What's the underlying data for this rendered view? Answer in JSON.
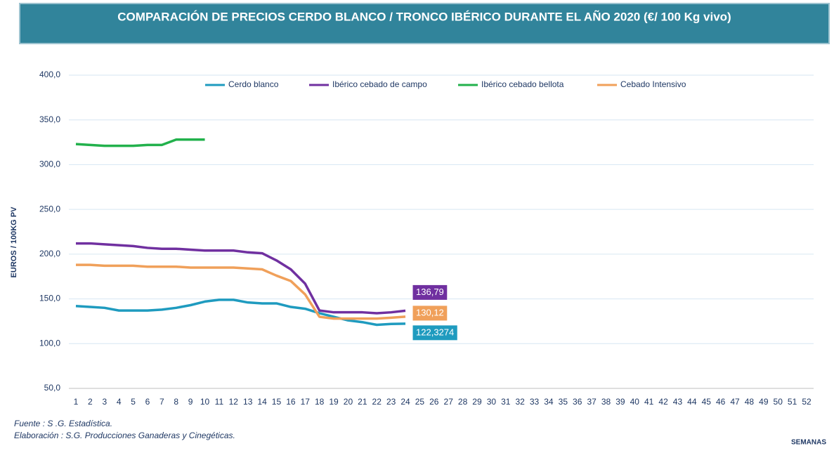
{
  "chart_data": {
    "type": "line",
    "title": "COMPARACIÓN DE PRECIOS CERDO BLANCO / TRONCO IBÉRICO DURANTE EL AÑO 2020 (€/ 100 Kg vivo)",
    "ylabel": "EUROS / 100KG PV",
    "xlabel": "SEMANAS",
    "source": [
      "Fuente :  S .G. Estadística.",
      "Elaboración : S.G. Producciones Ganaderas y Cinegéticas."
    ],
    "x": [
      1,
      2,
      3,
      4,
      5,
      6,
      7,
      8,
      9,
      10,
      11,
      12,
      13,
      14,
      15,
      16,
      17,
      18,
      19,
      20,
      21,
      22,
      23,
      24,
      25,
      26,
      27,
      28,
      29,
      30,
      31,
      32,
      33,
      34,
      35,
      36,
      37,
      38,
      39,
      40,
      41,
      42,
      43,
      44,
      45,
      46,
      47,
      48,
      49,
      50,
      51,
      52
    ],
    "xlim": [
      1,
      52
    ],
    "ylim": [
      50,
      400
    ],
    "yticks": [
      {
        "value": 50,
        "label": "50,0"
      },
      {
        "value": 100,
        "label": "100,0"
      },
      {
        "value": 150,
        "label": "150,0"
      },
      {
        "value": 200,
        "label": "200,0"
      },
      {
        "value": 250,
        "label": "250,0"
      },
      {
        "value": 300,
        "label": "300,0"
      },
      {
        "value": 350,
        "label": "350,0"
      },
      {
        "value": 400,
        "label": "400,0"
      }
    ],
    "grid": true,
    "legend": "top",
    "series": [
      {
        "name": "Cerdo blanco",
        "color": "#1f9bbf",
        "values": [
          142,
          141,
          140,
          137,
          137,
          137,
          138,
          140,
          143,
          147,
          149,
          149,
          146,
          145,
          145,
          141,
          139,
          134,
          130,
          126,
          124,
          121,
          122,
          122.3274,
          null,
          null,
          null,
          null,
          null,
          null,
          null,
          null,
          null,
          null,
          null,
          null,
          null,
          null,
          null,
          null,
          null,
          null,
          null,
          null,
          null,
          null,
          null,
          null,
          null,
          null,
          null,
          null
        ],
        "value_labels": [
          null,
          null,
          null,
          null,
          null,
          null,
          null,
          null,
          null,
          null,
          null,
          null,
          null,
          null,
          null,
          null,
          null,
          null,
          null,
          null,
          null,
          null,
          null,
          "122,3274",
          null,
          null,
          null,
          null,
          null,
          null,
          null,
          null,
          null,
          null,
          null,
          null,
          null,
          null,
          null,
          null,
          null,
          null,
          null,
          null,
          null,
          null,
          null,
          null,
          null,
          null,
          null,
          null
        ]
      },
      {
        "name": "Ibérico cebado de campo",
        "color": "#7030a0",
        "values": [
          212,
          212,
          211,
          210,
          209,
          207,
          206,
          206,
          205,
          204,
          204,
          204,
          202,
          201,
          193,
          183,
          167,
          137,
          135,
          135,
          135,
          134,
          135,
          136.79,
          null,
          null,
          null,
          null,
          null,
          null,
          null,
          null,
          null,
          null,
          null,
          null,
          null,
          null,
          null,
          null,
          null,
          null,
          null,
          null,
          null,
          null,
          null,
          null,
          null,
          null,
          null,
          null
        ],
        "value_labels": [
          null,
          null,
          null,
          null,
          null,
          null,
          null,
          null,
          null,
          null,
          null,
          null,
          null,
          null,
          null,
          null,
          null,
          null,
          null,
          null,
          null,
          null,
          null,
          "136,79",
          null,
          null,
          null,
          null,
          null,
          null,
          null,
          null,
          null,
          null,
          null,
          null,
          null,
          null,
          null,
          null,
          null,
          null,
          null,
          null,
          null,
          null,
          null,
          null,
          null,
          null,
          null,
          null
        ]
      },
      {
        "name": "Ibérico cebado bellota",
        "color": "#22b14c",
        "values": [
          323,
          322,
          321,
          321,
          321,
          322,
          322,
          328,
          328,
          328,
          null,
          null,
          null,
          null,
          null,
          null,
          null,
          null,
          null,
          null,
          null,
          null,
          null,
          null,
          null,
          null,
          null,
          null,
          null,
          null,
          null,
          null,
          null,
          null,
          null,
          null,
          null,
          null,
          null,
          null,
          null,
          null,
          null,
          null,
          null,
          null,
          null,
          null,
          null,
          null,
          null,
          null
        ]
      },
      {
        "name": "Cebado Intensivo",
        "color": "#f0a05a",
        "values": [
          188,
          188,
          187,
          187,
          187,
          186,
          186,
          186,
          185,
          185,
          185,
          185,
          184,
          183,
          176,
          170,
          155,
          130,
          128,
          128,
          128,
          128,
          129,
          130.12,
          null,
          null,
          null,
          null,
          null,
          null,
          null,
          null,
          null,
          null,
          null,
          null,
          null,
          null,
          null,
          null,
          null,
          null,
          null,
          null,
          null,
          null,
          null,
          null,
          null,
          null,
          null,
          null
        ],
        "value_labels": [
          null,
          null,
          null,
          null,
          null,
          null,
          null,
          null,
          null,
          null,
          null,
          null,
          null,
          null,
          null,
          null,
          null,
          null,
          null,
          null,
          null,
          null,
          null,
          "130,12",
          null,
          null,
          null,
          null,
          null,
          null,
          null,
          null,
          null,
          null,
          null,
          null,
          null,
          null,
          null,
          null,
          null,
          null,
          null,
          null,
          null,
          null,
          null,
          null,
          null,
          null,
          null,
          null
        ]
      }
    ]
  }
}
